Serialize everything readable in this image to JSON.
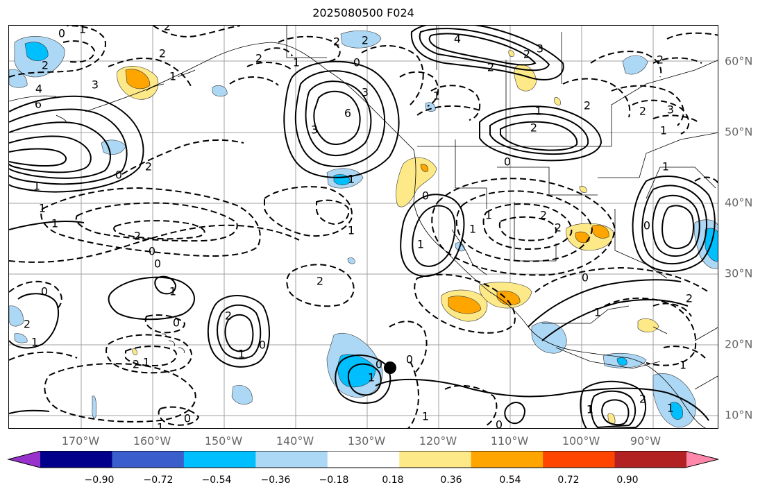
{
  "title": "2025080500 F024",
  "longitude_labels": [
    "170°W",
    "160°W",
    "150°W",
    "140°W",
    "130°W",
    "120°W",
    "110°W",
    "100°W",
    "90°W"
  ],
  "latitude_labels": [
    "60°N",
    "50°N",
    "40°N",
    "30°N",
    "20°N",
    "10°N"
  ],
  "colorbar": {
    "ticks": [
      "−0.90",
      "−0.72",
      "−0.54",
      "−0.36",
      "−0.18",
      "0.18",
      "0.36",
      "0.54",
      "0.72",
      "0.90"
    ],
    "colors": [
      "#9932cc",
      "#00008b",
      "#3a5fcd",
      "#00bfff",
      "#add8f5",
      "#ffffff",
      "#fde987",
      "#ffa500",
      "#ff4500",
      "#b22222",
      "#ff88aa"
    ]
  },
  "contour_labels": [
    {
      "text": "0"
    },
    {
      "text": "1"
    },
    {
      "text": "2"
    },
    {
      "text": "2"
    },
    {
      "text": "4"
    },
    {
      "text": "6"
    },
    {
      "text": "3"
    },
    {
      "text": "1"
    },
    {
      "text": "2"
    },
    {
      "text": "0"
    },
    {
      "text": "2"
    },
    {
      "text": "1"
    },
    {
      "text": "2"
    },
    {
      "text": "2"
    },
    {
      "text": "2"
    },
    {
      "text": "0"
    },
    {
      "text": "1"
    },
    {
      "text": "3"
    },
    {
      "text": "6"
    },
    {
      "text": "3"
    },
    {
      "text": "1"
    },
    {
      "text": "4"
    },
    {
      "text": "3"
    },
    {
      "text": "2"
    },
    {
      "text": "2"
    },
    {
      "text": "1"
    },
    {
      "text": "2"
    },
    {
      "text": "1"
    },
    {
      "text": "0"
    },
    {
      "text": "2"
    },
    {
      "text": "3"
    },
    {
      "text": "1"
    },
    {
      "text": "2"
    },
    {
      "text": "2"
    },
    {
      "text": "0"
    },
    {
      "text": "1"
    },
    {
      "text": "1"
    },
    {
      "text": "1"
    },
    {
      "text": "2"
    },
    {
      "text": "1"
    },
    {
      "text": "0"
    },
    {
      "text": "2"
    },
    {
      "text": "1"
    },
    {
      "text": "0"
    },
    {
      "text": "1"
    },
    {
      "text": "2"
    },
    {
      "text": "1"
    },
    {
      "text": "0"
    },
    {
      "text": "0"
    },
    {
      "text": "0"
    },
    {
      "text": "2"
    },
    {
      "text": "0"
    },
    {
      "text": "2"
    },
    {
      "text": "0"
    },
    {
      "text": "1"
    },
    {
      "text": "1"
    },
    {
      "text": "1"
    },
    {
      "text": "0"
    },
    {
      "text": "0"
    },
    {
      "text": "1"
    },
    {
      "text": "0"
    },
    {
      "text": "1"
    },
    {
      "text": "1"
    },
    {
      "text": "2"
    },
    {
      "text": "2"
    },
    {
      "text": "1"
    },
    {
      "text": "1"
    },
    {
      "text": "0"
    },
    {
      "text": "1"
    },
    {
      "text": "2"
    },
    {
      "text": "1"
    },
    {
      "text": "2"
    },
    {
      "text": "1"
    }
  ]
}
